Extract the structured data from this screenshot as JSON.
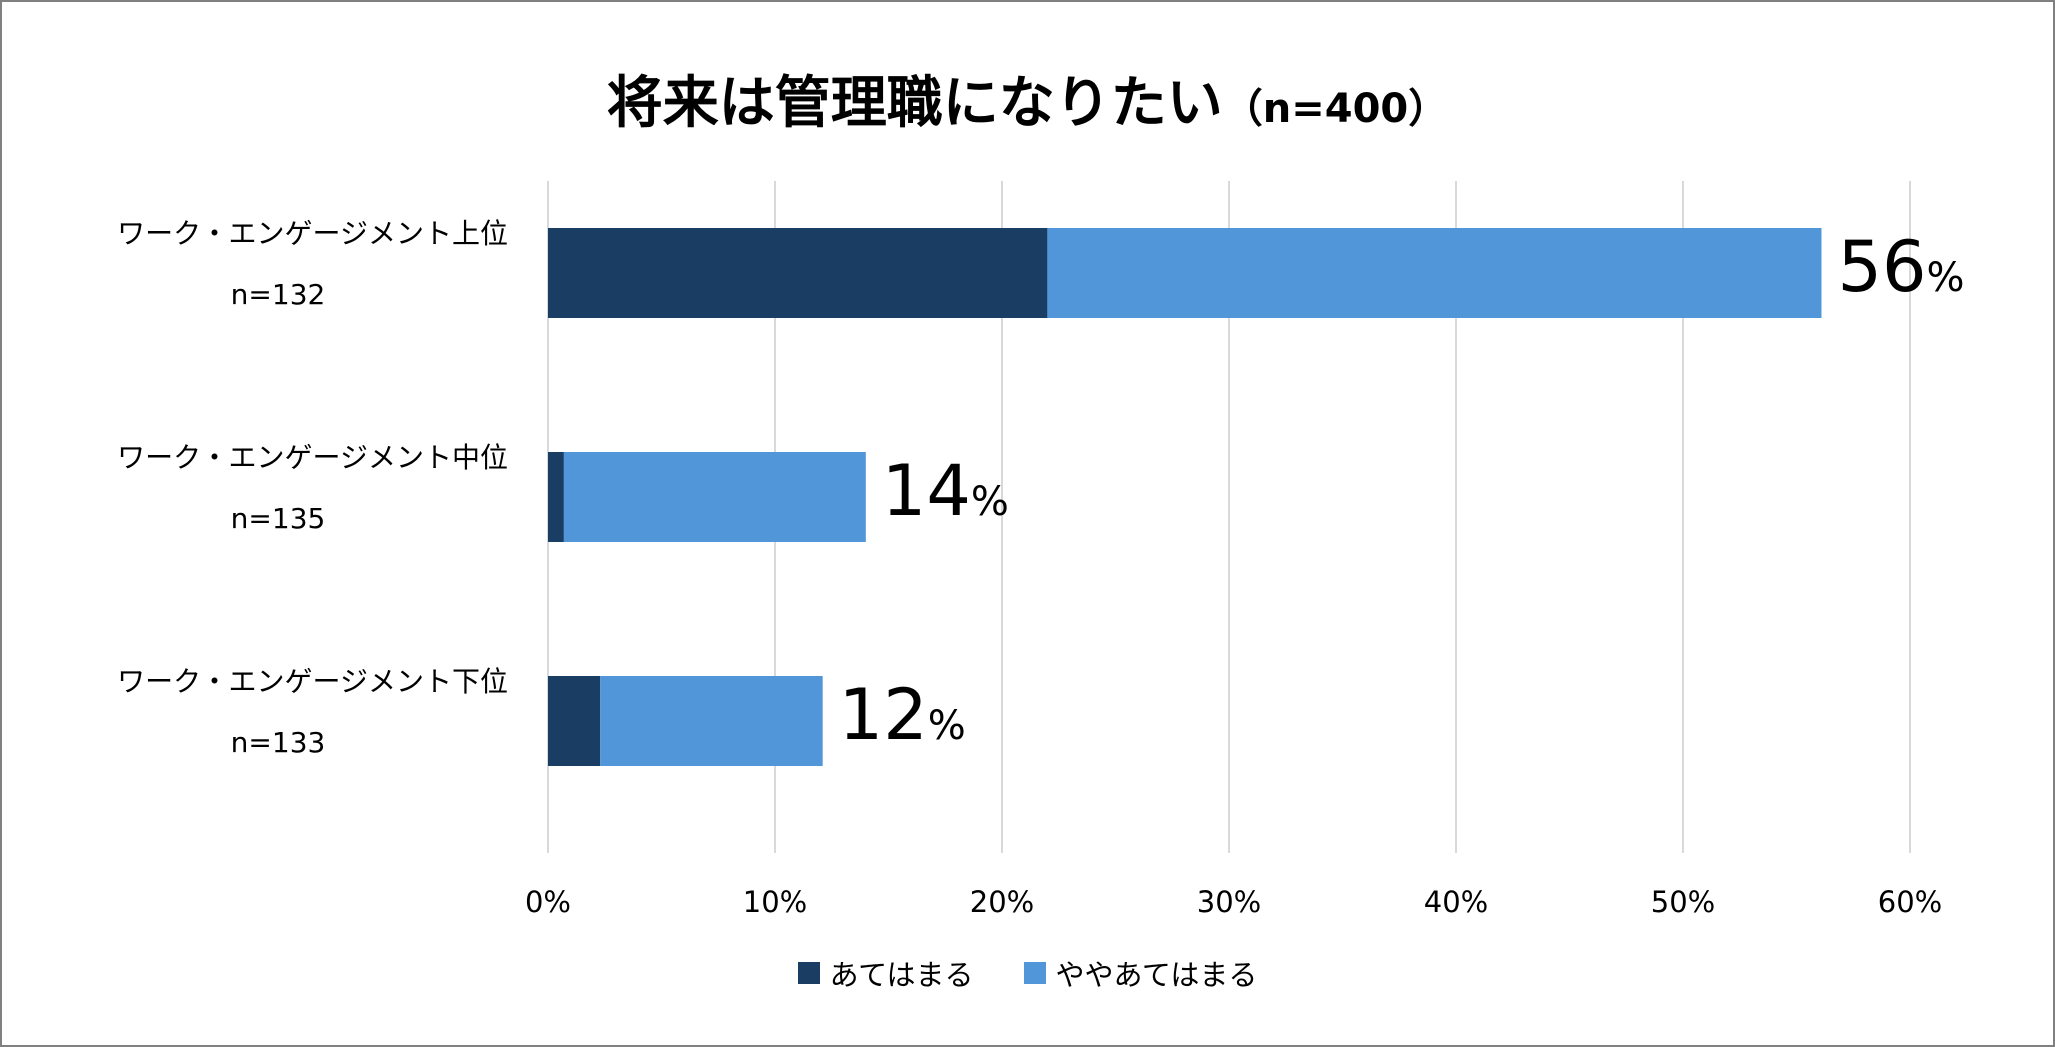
{
  "chart_data": {
    "type": "bar",
    "orientation": "horizontal",
    "stacked": true,
    "title": "将来は管理職になりたい",
    "subtitle": "（n=400）",
    "categories": [
      {
        "label": "ワーク・エンゲージメント上位",
        "n": "n=132"
      },
      {
        "label": "ワーク・エンゲージメント中位",
        "n": "n=135"
      },
      {
        "label": "ワーク・エンゲージメント下位",
        "n": "n=133"
      }
    ],
    "series": [
      {
        "name": "あてはまる",
        "color": "#193D63",
        "values": [
          22.0,
          0.7,
          2.3
        ]
      },
      {
        "name": "ややあてはまる",
        "color": "#5096D8",
        "values": [
          34.1,
          13.3,
          9.8
        ]
      }
    ],
    "totals": [
      {
        "num": "56",
        "pct": "%"
      },
      {
        "num": "14",
        "pct": "%"
      },
      {
        "num": "12",
        "pct": "%"
      }
    ],
    "xlim": [
      0,
      60
    ],
    "xticks": [
      "0%",
      "10%",
      "20%",
      "30%",
      "40%",
      "50%",
      "60%"
    ],
    "grid": true,
    "legend": "bottom",
    "xlabel": "",
    "ylabel": ""
  }
}
